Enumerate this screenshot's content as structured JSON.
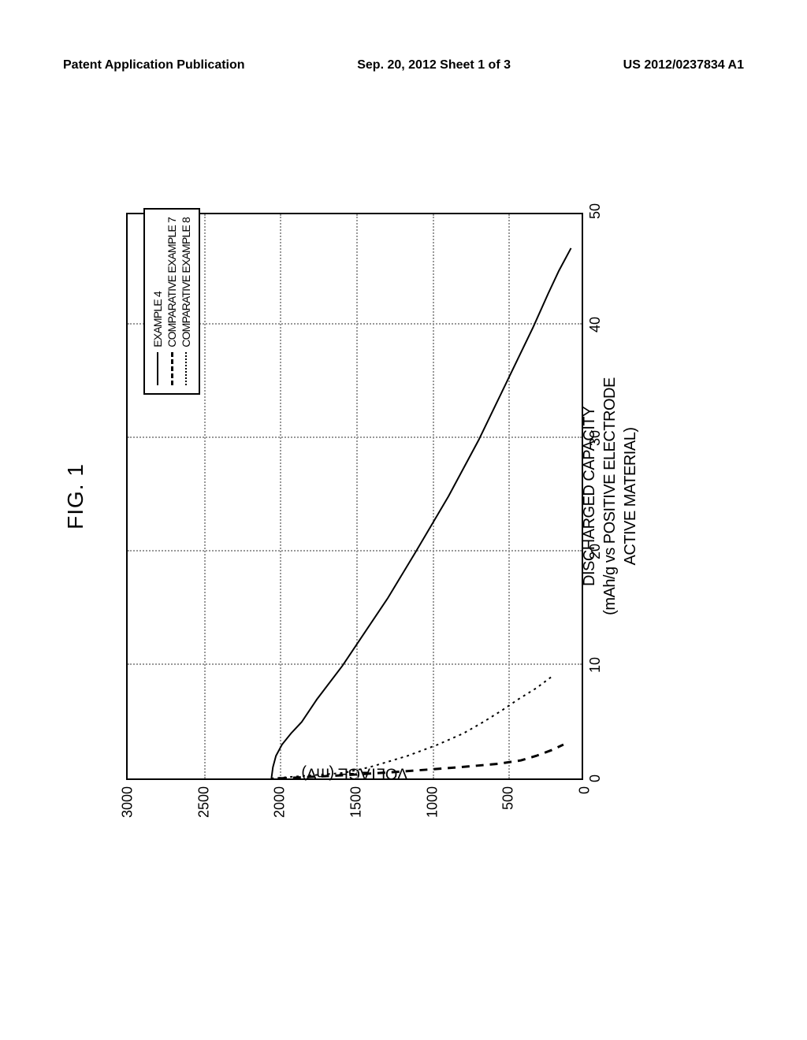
{
  "header": {
    "left": "Patent Application Publication",
    "center": "Sep. 20, 2012  Sheet 1 of 3",
    "right": "US 2012/0237834 A1"
  },
  "figure": {
    "label": "FIG. 1",
    "chart": {
      "type": "line",
      "ylabel": "VOLTAGE (mV)",
      "xlabel_line1": "DISCHARGED CAPACITY",
      "xlabel_line2": "(mAh/g vs POSITIVE ELECTRODE ACTIVE MATERIAL)",
      "ylim": [
        0,
        3000
      ],
      "xlim": [
        0,
        50
      ],
      "yticks": [
        0,
        500,
        1000,
        1500,
        2000,
        2500,
        3000
      ],
      "xticks": [
        0,
        10,
        20,
        30,
        40,
        50
      ],
      "background_color": "#ffffff",
      "border_color": "#000000",
      "grid_color": "#999999",
      "grid_style": "dotted",
      "series": [
        {
          "name": "EXAMPLE 4",
          "style": "solid",
          "color": "#000000",
          "width": 2,
          "data": [
            [
              0,
              2050
            ],
            [
              1,
              2040
            ],
            [
              2,
              2020
            ],
            [
              3,
              1980
            ],
            [
              4,
              1920
            ],
            [
              5,
              1850
            ],
            [
              7,
              1750
            ],
            [
              10,
              1580
            ],
            [
              13,
              1430
            ],
            [
              16,
              1280
            ],
            [
              20,
              1100
            ],
            [
              25,
              880
            ],
            [
              30,
              680
            ],
            [
              35,
              500
            ],
            [
              40,
              320
            ],
            [
              43,
              220
            ],
            [
              45,
              150
            ],
            [
              47,
              70
            ]
          ]
        },
        {
          "name": "COMPARATIVE EXAMPLE 7",
          "style": "dashed",
          "color": "#000000",
          "width": 3,
          "data": [
            [
              0,
              2000
            ],
            [
              0.3,
              1550
            ],
            [
              0.6,
              1200
            ],
            [
              1,
              800
            ],
            [
              1.3,
              550
            ],
            [
              1.6,
              400
            ],
            [
              2,
              300
            ],
            [
              2.5,
              200
            ],
            [
              3,
              120
            ]
          ]
        },
        {
          "name": "COMPARATIVE EXAMPLE 8",
          "style": "dotted",
          "color": "#000000",
          "width": 2,
          "data": [
            [
              0,
              2050
            ],
            [
              0.5,
              1570
            ],
            [
              1,
              1400
            ],
            [
              2,
              1150
            ],
            [
              3,
              950
            ],
            [
              4,
              780
            ],
            [
              5,
              650
            ],
            [
              6,
              530
            ],
            [
              7,
              420
            ],
            [
              8,
              300
            ],
            [
              9,
              200
            ]
          ]
        }
      ],
      "legend": {
        "position": "top-right",
        "border_color": "#000000",
        "items": [
          "EXAMPLE 4",
          "COMPARATIVE EXAMPLE 7",
          "COMPARATIVE EXAMPLE 8"
        ]
      }
    }
  }
}
